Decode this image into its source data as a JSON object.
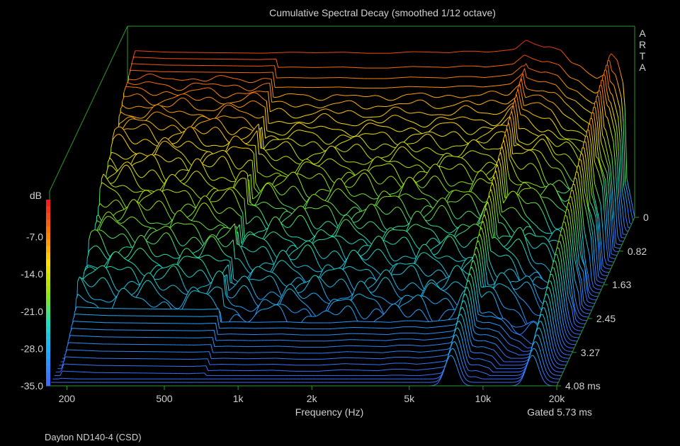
{
  "chart_data": {
    "type": "waterfall",
    "title": "Cumulative Spectral Decay (smoothed 1/12 octave)",
    "watermark": "ARTA",
    "xlabel": "Frequency (Hz)",
    "x_scale": "log",
    "xlim": [
      170,
      20000
    ],
    "x_ticks": [
      {
        "value": 200,
        "label": "200"
      },
      {
        "value": 500,
        "label": "500"
      },
      {
        "value": 1000,
        "label": "1k"
      },
      {
        "value": 2000,
        "label": "2k"
      },
      {
        "value": 5000,
        "label": "5k"
      },
      {
        "value": 10000,
        "label": "10k"
      },
      {
        "value": 20000,
        "label": "20k"
      }
    ],
    "zlabel": "dB",
    "zlim": [
      -35,
      0
    ],
    "z_ticks": [
      "-7.0",
      "-14.0",
      "-21.0",
      "-28.0",
      "-35.0"
    ],
    "time_label_unit": "ms",
    "time_ticks": [
      {
        "value": 0,
        "label": "0"
      },
      {
        "value": 0.82,
        "label": "0.82"
      },
      {
        "value": 1.63,
        "label": "1.63"
      },
      {
        "value": 2.45,
        "label": "2.45"
      },
      {
        "value": 3.27,
        "label": "3.27"
      },
      {
        "value": 4.08,
        "label": "4.08 ms"
      }
    ],
    "gate_note": "Gated 5.73 ms",
    "slices": 50,
    "time_max_ms": 4.08,
    "first_slice_response": {
      "freq_hz": [
        170,
        180,
        250,
        400,
        600,
        800,
        1000,
        1300,
        1600,
        2000,
        2500,
        3000,
        3500,
        4000,
        4500,
        5000,
        5800,
        6500,
        7200,
        7800,
        8500,
        9000,
        10000,
        11000,
        12000,
        13000,
        14000,
        15000,
        16000,
        17000,
        18000,
        19000,
        20000
      ],
      "db": [
        -33,
        -2.3,
        -2.6,
        -2.7,
        -2.8,
        -2.6,
        -2.7,
        -2.6,
        -2.8,
        -2.8,
        -2.5,
        -2.6,
        -2.7,
        -2.4,
        -2.4,
        -2.6,
        -2.3,
        -2.0,
        -0.2,
        -1.0,
        -1.6,
        -1.5,
        -2.2,
        -4.6,
        -5.3,
        -6.8,
        -7.8,
        -7.0,
        -2.8,
        -4.2,
        -9.0,
        -26,
        -34
      ]
    },
    "resonances": [
      {
        "freq_hz": 7400,
        "persists_ms": 4.08
      },
      {
        "freq_hz": 15900,
        "persists_ms": 4.08
      }
    ],
    "color_scale": [
      "#ee2020",
      "#ff7a00",
      "#ffe000",
      "#9ae600",
      "#18e0c0",
      "#20a8ff",
      "#3c6cff"
    ]
  },
  "footer": "Dayton ND140-4 (CSD)"
}
